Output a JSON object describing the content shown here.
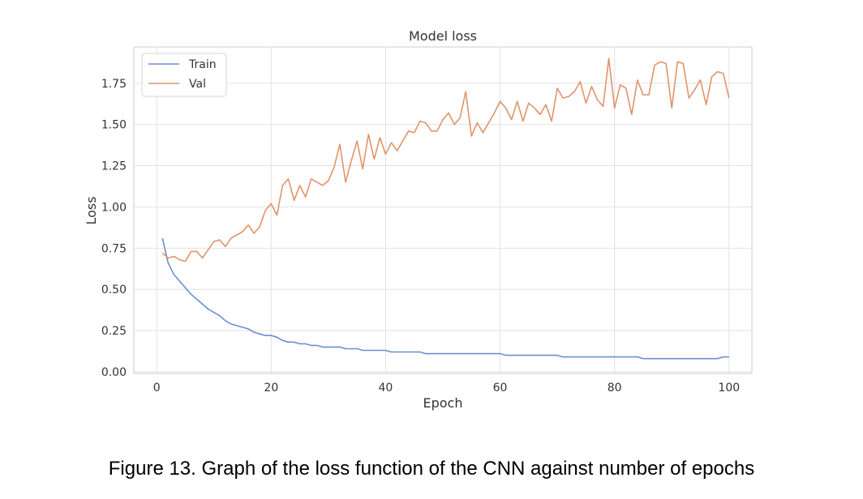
{
  "chart_data": {
    "type": "line",
    "title": "Model loss",
    "xlabel": "Epoch",
    "ylabel": "Loss",
    "xlim": [
      -4,
      104
    ],
    "ylim": [
      -0.01,
      1.97
    ],
    "xticks": [
      0,
      20,
      40,
      60,
      80,
      100
    ],
    "xtick_labels": [
      "0",
      "20",
      "40",
      "60",
      "80",
      "100"
    ],
    "yticks": [
      0,
      0.25,
      0.5,
      0.75,
      1.0,
      1.25,
      1.5,
      1.75
    ],
    "ytick_labels": [
      "0.00",
      "0.25",
      "0.50",
      "0.75",
      "1.00",
      "1.25",
      "1.50",
      "1.75"
    ],
    "grid": true,
    "legend_position": "top-left",
    "x": [
      1,
      2,
      3,
      4,
      5,
      6,
      7,
      8,
      9,
      10,
      11,
      12,
      13,
      14,
      15,
      16,
      17,
      18,
      19,
      20,
      21,
      22,
      23,
      24,
      25,
      26,
      27,
      28,
      29,
      30,
      31,
      32,
      33,
      34,
      35,
      36,
      37,
      38,
      39,
      40,
      41,
      42,
      43,
      44,
      45,
      46,
      47,
      48,
      49,
      50,
      51,
      52,
      53,
      54,
      55,
      56,
      57,
      58,
      59,
      60,
      61,
      62,
      63,
      64,
      65,
      66,
      67,
      68,
      69,
      70,
      71,
      72,
      73,
      74,
      75,
      76,
      77,
      78,
      79,
      80,
      81,
      82,
      83,
      84,
      85,
      86,
      87,
      88,
      89,
      90,
      91,
      92,
      93,
      94,
      95,
      96,
      97,
      98,
      99,
      100
    ],
    "series": [
      {
        "name": "Train",
        "color": "#6a8fd0",
        "values": [
          0.81,
          0.66,
          0.59,
          0.55,
          0.51,
          0.47,
          0.44,
          0.41,
          0.38,
          0.36,
          0.34,
          0.31,
          0.29,
          0.28,
          0.27,
          0.26,
          0.24,
          0.23,
          0.22,
          0.22,
          0.21,
          0.19,
          0.18,
          0.18,
          0.17,
          0.17,
          0.16,
          0.16,
          0.15,
          0.15,
          0.15,
          0.15,
          0.14,
          0.14,
          0.14,
          0.13,
          0.13,
          0.13,
          0.13,
          0.13,
          0.12,
          0.12,
          0.12,
          0.12,
          0.12,
          0.12,
          0.11,
          0.11,
          0.11,
          0.11,
          0.11,
          0.11,
          0.11,
          0.11,
          0.11,
          0.11,
          0.11,
          0.11,
          0.11,
          0.11,
          0.1,
          0.1,
          0.1,
          0.1,
          0.1,
          0.1,
          0.1,
          0.1,
          0.1,
          0.1,
          0.09,
          0.09,
          0.09,
          0.09,
          0.09,
          0.09,
          0.09,
          0.09,
          0.09,
          0.09,
          0.09,
          0.09,
          0.09,
          0.09,
          0.08,
          0.08,
          0.08,
          0.08,
          0.08,
          0.08,
          0.08,
          0.08,
          0.08,
          0.08,
          0.08,
          0.08,
          0.08,
          0.08,
          0.09,
          0.09
        ]
      },
      {
        "name": "Val",
        "color": "#e0946a",
        "values": [
          0.72,
          0.69,
          0.7,
          0.68,
          0.67,
          0.73,
          0.73,
          0.69,
          0.74,
          0.79,
          0.8,
          0.76,
          0.81,
          0.83,
          0.85,
          0.89,
          0.84,
          0.88,
          0.98,
          1.02,
          0.95,
          1.13,
          1.17,
          1.04,
          1.13,
          1.06,
          1.17,
          1.15,
          1.13,
          1.16,
          1.24,
          1.38,
          1.15,
          1.28,
          1.4,
          1.23,
          1.44,
          1.29,
          1.42,
          1.32,
          1.39,
          1.34,
          1.4,
          1.46,
          1.45,
          1.52,
          1.51,
          1.46,
          1.46,
          1.53,
          1.57,
          1.5,
          1.54,
          1.7,
          1.43,
          1.51,
          1.45,
          1.51,
          1.57,
          1.64,
          1.6,
          1.53,
          1.64,
          1.52,
          1.63,
          1.6,
          1.56,
          1.62,
          1.52,
          1.72,
          1.66,
          1.67,
          1.7,
          1.76,
          1.63,
          1.73,
          1.65,
          1.61,
          1.9,
          1.6,
          1.74,
          1.72,
          1.56,
          1.77,
          1.68,
          1.68,
          1.86,
          1.88,
          1.87,
          1.6,
          1.88,
          1.87,
          1.66,
          1.71,
          1.77,
          1.62,
          1.79,
          1.82,
          1.81,
          1.66
        ]
      }
    ]
  },
  "caption": "Figure 13. Graph of the loss function of the CNN against number of epochs"
}
